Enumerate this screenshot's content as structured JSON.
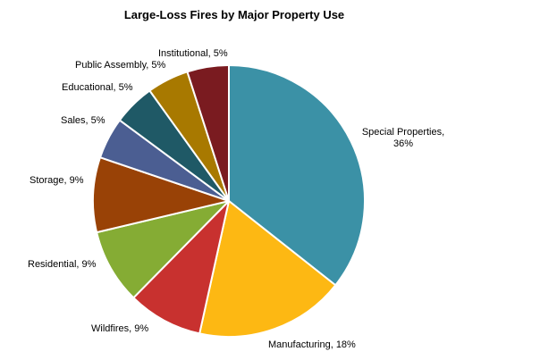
{
  "chart_data": {
    "type": "pie",
    "title": "Large-Loss Fires by Major Property Use",
    "start_angle_deg": 0,
    "direction": "clockwise",
    "legend": "none",
    "slices": [
      {
        "label": "Special Properties, 36%",
        "lines": [
          "Special Properties,",
          "36%"
        ],
        "value": 36,
        "color": "#3B91A6"
      },
      {
        "label": "Manufacturing, 18%",
        "lines": [
          "Manufacturing, 18%"
        ],
        "value": 18,
        "color": "#FDB813"
      },
      {
        "label": "Wildfires, 9%",
        "lines": [
          "Wildfires, 9%"
        ],
        "value": 9,
        "color": "#C8312F"
      },
      {
        "label": "Residential, 9%",
        "lines": [
          "Residential, 9%"
        ],
        "value": 9,
        "color": "#85AC34"
      },
      {
        "label": "Storage, 9%",
        "lines": [
          "Storage, 9%"
        ],
        "value": 9,
        "color": "#994206"
      },
      {
        "label": "Sales, 5%",
        "lines": [
          "Sales, 5%"
        ],
        "value": 5,
        "color": "#4B5E92"
      },
      {
        "label": "Educational, 5%",
        "lines": [
          "Educational, 5%"
        ],
        "value": 5,
        "color": "#1F5966"
      },
      {
        "label": "Public Assembly, 5%",
        "lines": [
          "Public Assembly, 5%"
        ],
        "value": 5,
        "color": "#A87900"
      },
      {
        "label": "Institutional, 5%",
        "lines": [
          "Institutional, 5%"
        ],
        "value": 5,
        "color": "#7A1B20"
      }
    ]
  }
}
